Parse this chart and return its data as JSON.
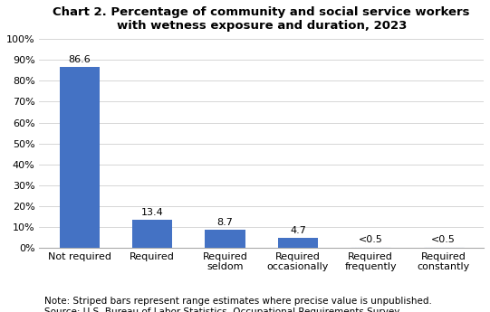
{
  "title": "Chart 2. Percentage of community and social service workers\nwith wetness exposure and duration, 2023",
  "categories": [
    "Not required",
    "Required",
    "Required\nseldom",
    "Required\noccasionally",
    "Required\nfrequently",
    "Required\nconstantly"
  ],
  "values": [
    86.6,
    13.4,
    8.7,
    4.7,
    0.3,
    0.3
  ],
  "labels": [
    "86.6",
    "13.4",
    "8.7",
    "4.7",
    "<0.5",
    "<0.5"
  ],
  "striped": [
    false,
    false,
    false,
    false,
    true,
    true
  ],
  "bar_color": "#4472C4",
  "stripe_color": "#AFC8E8",
  "ylim": [
    0,
    100
  ],
  "yticks": [
    0,
    10,
    20,
    30,
    40,
    50,
    60,
    70,
    80,
    90,
    100
  ],
  "ytick_labels": [
    "0%",
    "10%",
    "20%",
    "30%",
    "40%",
    "50%",
    "60%",
    "70%",
    "80%",
    "90%",
    "100%"
  ],
  "note_line1": "Note: Striped bars represent range estimates where precise value is unpublished.",
  "note_line2": "Source: U.S. Bureau of Labor Statistics, Occupational Requirements Survey",
  "background_color": "#ffffff",
  "plot_background_color": "#ffffff",
  "title_fontsize": 9.5,
  "label_fontsize": 8,
  "tick_fontsize": 8,
  "note_fontsize": 7.5
}
